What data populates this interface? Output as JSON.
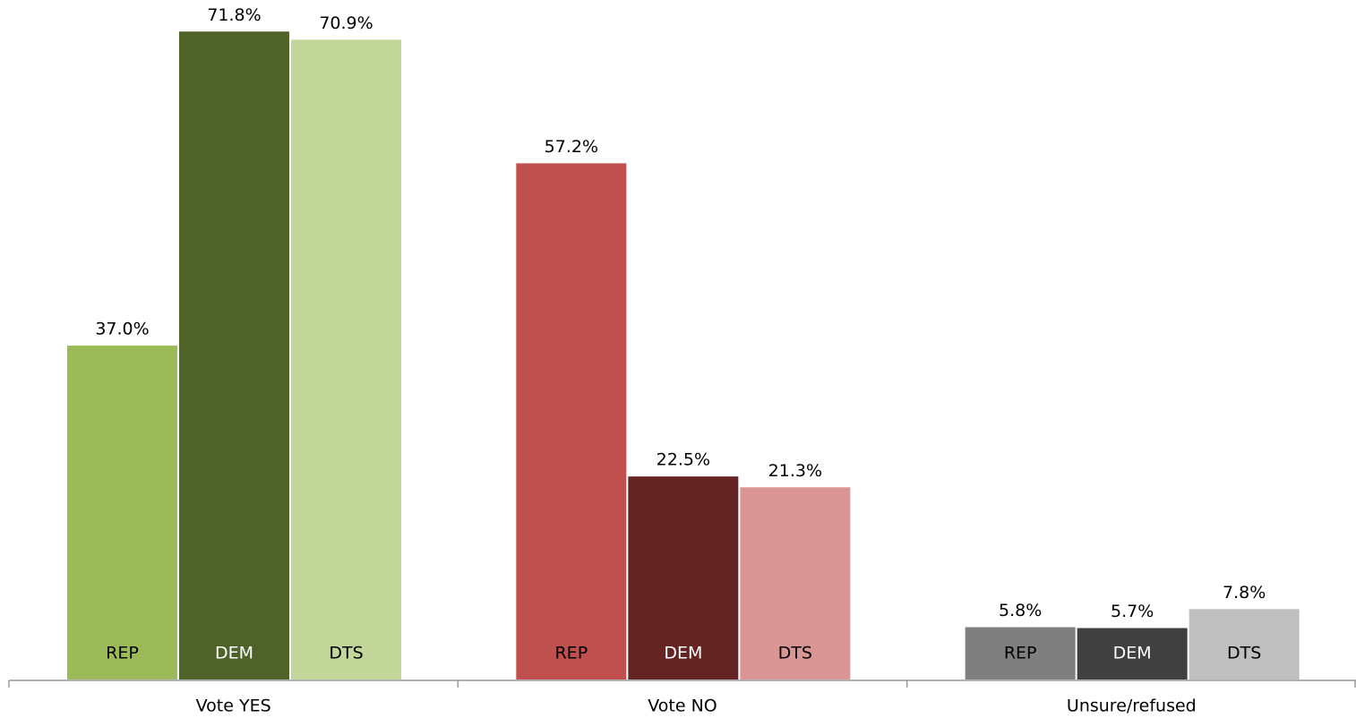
{
  "chart_data": {
    "type": "bar",
    "categories": [
      "Vote YES",
      "Vote NO",
      "Unsure/refused"
    ],
    "series": [
      {
        "name": "REP",
        "colors": [
          "#9bbb59",
          "#c0504d",
          "#7f7f7f"
        ],
        "label_color": "#000000",
        "values": [
          37.0,
          57.2,
          5.8
        ],
        "value_labels": [
          "37.0%",
          "57.2%",
          "5.8%"
        ]
      },
      {
        "name": "DEM",
        "colors": [
          "#4f6228",
          "#632423",
          "#404040"
        ],
        "label_color": "#ffffff",
        "values": [
          71.8,
          22.5,
          5.7
        ],
        "value_labels": [
          "71.8%",
          "22.5%",
          "5.7%"
        ]
      },
      {
        "name": "DTS",
        "colors": [
          "#c4d79b",
          "#da9694",
          "#bfbfbf"
        ],
        "label_color": "#000000",
        "values": [
          70.9,
          21.3,
          7.8
        ],
        "value_labels": [
          "70.9%",
          "21.3%",
          "7.8%"
        ]
      }
    ],
    "ylim": [
      0,
      75
    ]
  }
}
